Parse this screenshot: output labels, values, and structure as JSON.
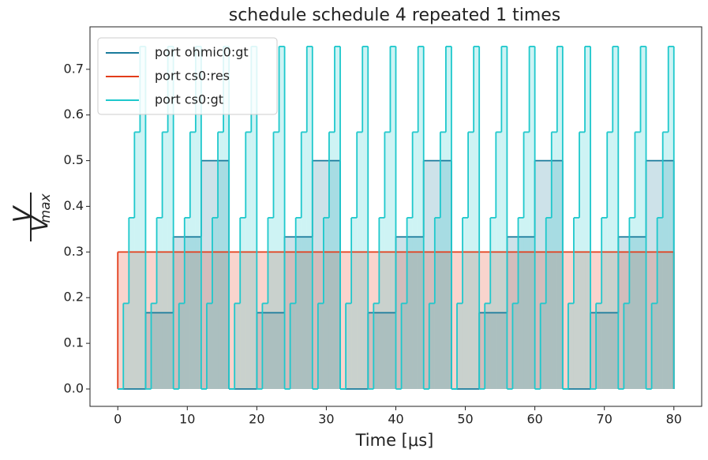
{
  "chart_data": {
    "type": "step",
    "title": "schedule schedule 4 repeated 1 times",
    "xlabel": "Time [μs]",
    "ylabel": {
      "numerator": "V",
      "denominator": "V",
      "subscript": "max"
    },
    "xlim": [
      -4,
      84
    ],
    "ylim": [
      -0.038,
      0.793
    ],
    "xticks": [
      0,
      10,
      20,
      30,
      40,
      50,
      60,
      70,
      80
    ],
    "yticks": [
      {
        "value": 0,
        "label": "0.0"
      },
      0.1,
      0.2,
      0.3,
      0.4,
      0.5,
      0.6,
      0.7
    ],
    "grid": false,
    "legend": "upper left",
    "series": [
      {
        "name": "port ohmic0:gt",
        "color": "#1a7b9c",
        "x": [
          0,
          4,
          8,
          12,
          16,
          20,
          24,
          28,
          32,
          36,
          40,
          44,
          48,
          52,
          56,
          60,
          64,
          68,
          72,
          76,
          80
        ],
        "values": [
          0,
          0.167,
          0.333,
          0.5,
          0,
          0.167,
          0.333,
          0.5,
          0,
          0.167,
          0.333,
          0.5,
          0,
          0.167,
          0.333,
          0.5,
          0,
          0.167,
          0.333,
          0.5,
          0.5
        ]
      },
      {
        "name": "port cs0:res",
        "color": "#e33d1a",
        "x": [
          0,
          80
        ],
        "values": [
          0.3,
          0.3
        ]
      },
      {
        "name": "port cs0:gt",
        "color": "#1ec8cc",
        "x": [
          0,
          0.8,
          1.6,
          2.4,
          3.2,
          4,
          4.8,
          5.6,
          6.4,
          7.2,
          8,
          8.8,
          9.6,
          10.4,
          11.2,
          12,
          12.8,
          13.6,
          14.4,
          15.2,
          16,
          16.8,
          17.6,
          18.4,
          19.2,
          20,
          20.8,
          21.6,
          22.4,
          23.2,
          24,
          24.8,
          25.6,
          26.4,
          27.2,
          28,
          28.8,
          29.6,
          30.4,
          31.2,
          32,
          32.8,
          33.6,
          34.4,
          35.2,
          36,
          36.8,
          37.6,
          38.4,
          39.2,
          40,
          40.8,
          41.6,
          42.4,
          43.2,
          44,
          44.8,
          45.6,
          46.4,
          47.2,
          48,
          48.8,
          49.6,
          50.4,
          51.2,
          52,
          52.8,
          53.6,
          54.4,
          55.2,
          56,
          56.8,
          57.6,
          58.4,
          59.2,
          60,
          60.8,
          61.6,
          62.4,
          63.2,
          64,
          64.8,
          65.6,
          66.4,
          67.2,
          68,
          68.8,
          69.6,
          70.4,
          71.2,
          72,
          72.8,
          73.6,
          74.4,
          75.2,
          76,
          76.8,
          77.6,
          78.4,
          79.2,
          80
        ],
        "values": [
          0,
          0.1875,
          0.375,
          0.5625,
          0.75,
          0,
          0.1875,
          0.375,
          0.5625,
          0.75,
          0,
          0.1875,
          0.375,
          0.5625,
          0.75,
          0,
          0.1875,
          0.375,
          0.5625,
          0.75,
          0,
          0.1875,
          0.375,
          0.5625,
          0.75,
          0,
          0.1875,
          0.375,
          0.5625,
          0.75,
          0,
          0.1875,
          0.375,
          0.5625,
          0.75,
          0,
          0.1875,
          0.375,
          0.5625,
          0.75,
          0,
          0.1875,
          0.375,
          0.5625,
          0.75,
          0,
          0.1875,
          0.375,
          0.5625,
          0.75,
          0,
          0.1875,
          0.375,
          0.5625,
          0.75,
          0,
          0.1875,
          0.375,
          0.5625,
          0.75,
          0,
          0.1875,
          0.375,
          0.5625,
          0.75,
          0,
          0.1875,
          0.375,
          0.5625,
          0.75,
          0,
          0.1875,
          0.375,
          0.5625,
          0.75,
          0,
          0.1875,
          0.375,
          0.5625,
          0.75,
          0,
          0.1875,
          0.375,
          0.5625,
          0.75,
          0,
          0.1875,
          0.375,
          0.5625,
          0.75,
          0,
          0.1875,
          0.375,
          0.5625,
          0.75,
          0,
          0.1875,
          0.375,
          0.5625,
          0.75,
          0.75
        ]
      }
    ]
  }
}
